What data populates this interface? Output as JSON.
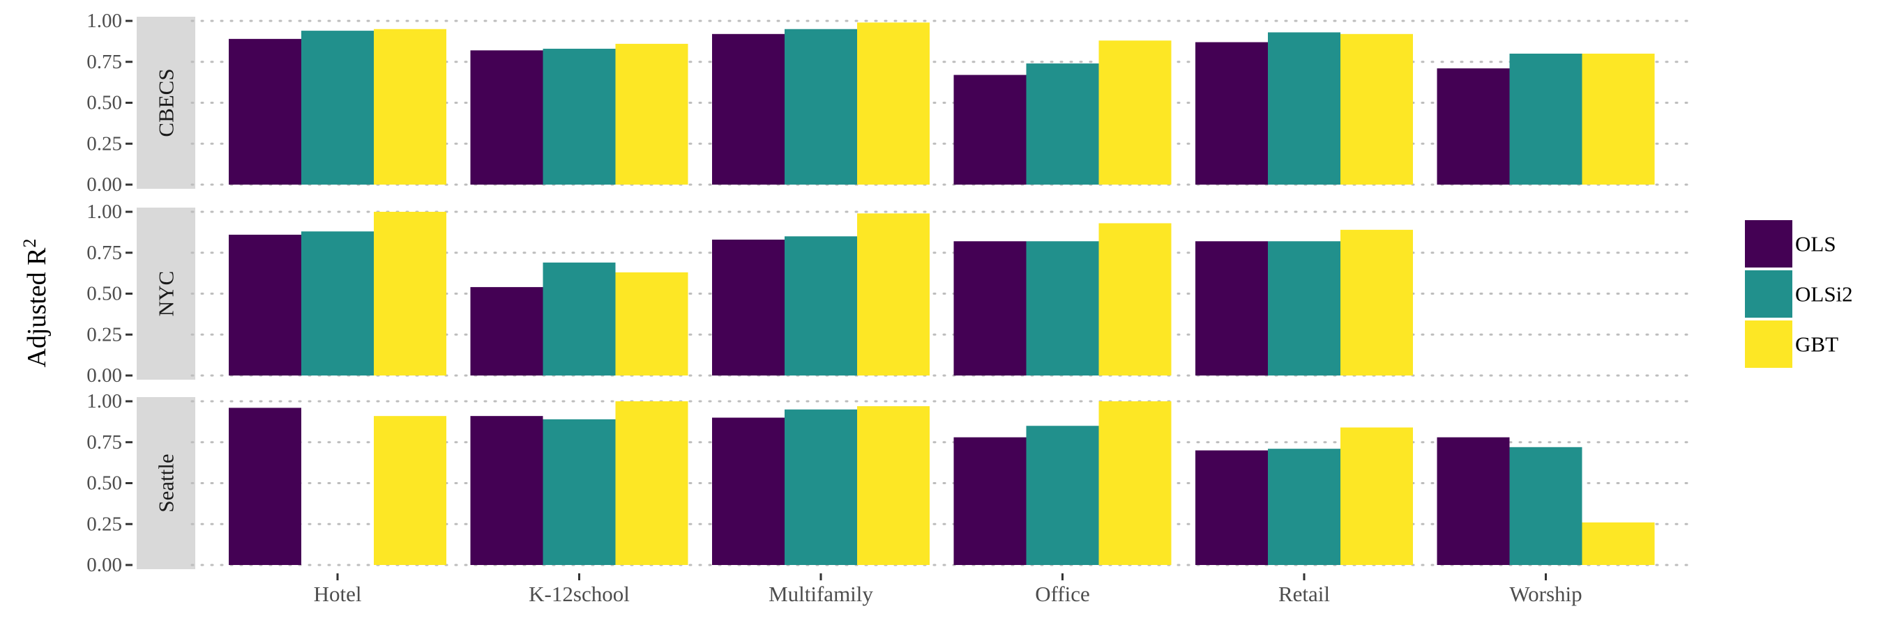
{
  "chart_data": {
    "type": "bar",
    "ylabel": "Adjusted R",
    "ylabel_superscript": "2",
    "ylim": [
      0,
      1
    ],
    "yticks": [
      "0.00",
      "0.25",
      "0.50",
      "0.75",
      "1.00"
    ],
    "ytick_values": [
      0,
      0.25,
      0.5,
      0.75,
      1.0
    ],
    "categories": [
      "Hotel",
      "K-12school",
      "Multifamily",
      "Office",
      "Retail",
      "Worship"
    ],
    "legend_placement": "right",
    "grid": true,
    "series_styles": [
      {
        "name": "OLS",
        "color": "#440154"
      },
      {
        "name": "OLSi2",
        "color": "#21908C"
      },
      {
        "name": "GBT",
        "color": "#FDE725"
      }
    ],
    "panels": [
      {
        "label": "CBECS",
        "series": [
          {
            "name": "OLS",
            "values": [
              0.89,
              0.82,
              0.92,
              0.67,
              0.87,
              0.71
            ]
          },
          {
            "name": "OLSi2",
            "values": [
              0.94,
              0.83,
              0.95,
              0.74,
              0.93,
              0.8
            ]
          },
          {
            "name": "GBT",
            "values": [
              0.95,
              0.86,
              0.99,
              0.88,
              0.92,
              0.8
            ]
          }
        ]
      },
      {
        "label": "NYC",
        "series": [
          {
            "name": "OLS",
            "values": [
              0.86,
              0.54,
              0.83,
              0.82,
              0.82,
              null
            ]
          },
          {
            "name": "OLSi2",
            "values": [
              0.88,
              0.69,
              0.85,
              0.82,
              0.82,
              null
            ]
          },
          {
            "name": "GBT",
            "values": [
              1.0,
              0.63,
              0.99,
              0.93,
              0.89,
              null
            ]
          }
        ]
      },
      {
        "label": "Seattle",
        "series": [
          {
            "name": "OLS",
            "values": [
              0.96,
              0.91,
              0.9,
              0.78,
              0.7,
              0.78
            ]
          },
          {
            "name": "OLSi2",
            "values": [
              null,
              0.89,
              0.95,
              0.85,
              0.71,
              0.72
            ]
          },
          {
            "name": "GBT",
            "values": [
              0.91,
              1.0,
              0.97,
              1.0,
              0.84,
              0.26
            ]
          }
        ]
      }
    ]
  }
}
